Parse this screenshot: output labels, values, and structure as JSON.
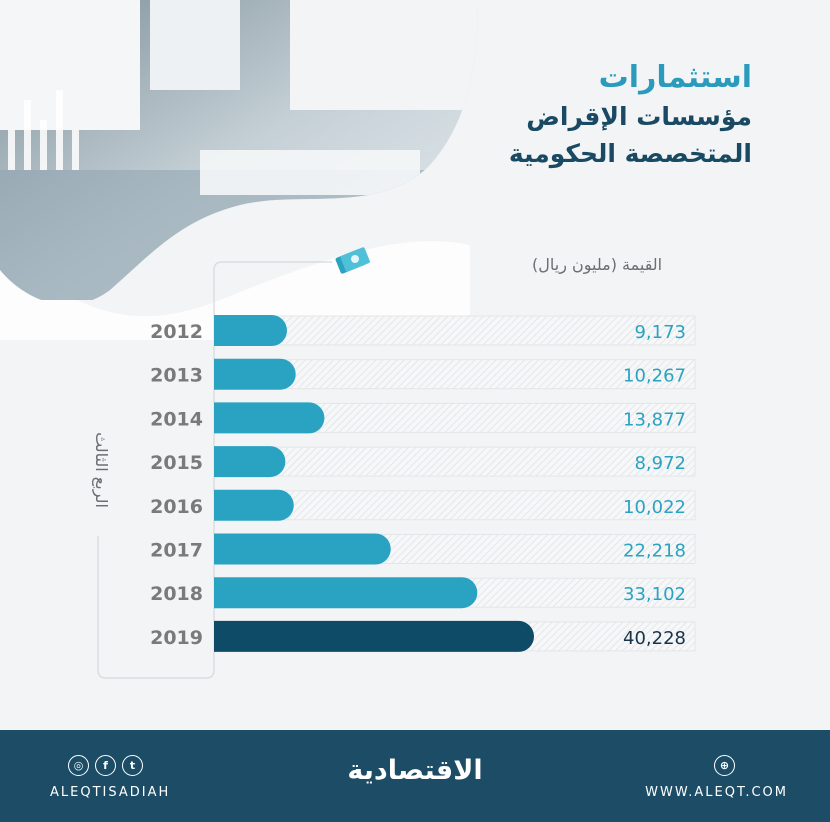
{
  "title": {
    "line1": "استثمارات",
    "line2": "مؤسسات الإقراض",
    "line3": "المتخصصة الحكومية"
  },
  "chart_data": {
    "type": "bar",
    "orientation": "horizontal",
    "ylabel": "القيمة (مليون ريال)",
    "xlabel": "الربع الثالث",
    "categories": [
      "2012",
      "2013",
      "2014",
      "2015",
      "2016",
      "2017",
      "2018",
      "2019"
    ],
    "values": [
      9173,
      10267,
      13877,
      8972,
      10022,
      22218,
      33102,
      40228
    ],
    "value_labels": [
      "9,173",
      "10,267",
      "13,877",
      "8,972",
      "10,022",
      "22,218",
      "33,102",
      "40,228"
    ],
    "max_value": 40228,
    "highlight": "2019",
    "colors": {
      "bar": "#2aa3c2",
      "highlight": "#0e4b66",
      "label": "#2aa3c2",
      "highlight_label": "#1a3346",
      "category": "#7a7a7a"
    }
  },
  "footer": {
    "handle": "ALEQTISADIAH",
    "url": "WWW.ALEQT.COM",
    "logo": "الاقتصادية",
    "social_icons": [
      "instagram-icon",
      "facebook-icon",
      "twitter-icon"
    ],
    "web_icon": "globe-icon",
    "social_glyphs": {
      "instagram": "◎",
      "facebook": "f",
      "twitter": "t",
      "web": "⊕"
    }
  }
}
